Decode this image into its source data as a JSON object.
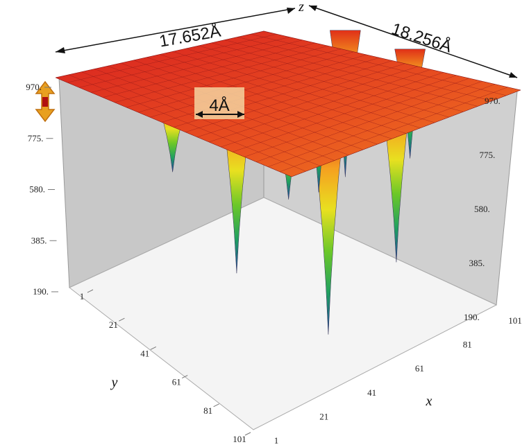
{
  "chart_data": {
    "type": "surface",
    "title": "",
    "dimensions": {
      "x_length": "17.652Å",
      "y_length": "18.256Å",
      "spacing": "4Å"
    },
    "axes": {
      "x": {
        "label": "x",
        "ticks": [
          "1",
          "21",
          "41",
          "61",
          "81",
          "101"
        ],
        "range": [
          1,
          101
        ]
      },
      "y": {
        "label": "y",
        "ticks": [
          "1",
          "21",
          "41",
          "61",
          "81",
          "101"
        ],
        "range": [
          1,
          101
        ]
      },
      "z": {
        "label": "z",
        "ticks": [
          "190.",
          "385.",
          "580.",
          "775.",
          "970."
        ],
        "range": [
          190,
          970
        ]
      }
    },
    "surface": {
      "plateau_z": 970,
      "wells": [
        {
          "x": 20,
          "y": 70,
          "min_z": 700
        },
        {
          "x": 35,
          "y": 55,
          "min_z": 330
        },
        {
          "x": 45,
          "y": 40,
          "min_z": 640
        },
        {
          "x": 50,
          "y": 25,
          "min_z": 190
        },
        {
          "x": 65,
          "y": 50,
          "min_z": 520
        },
        {
          "x": 78,
          "y": 25,
          "min_z": 330
        },
        {
          "x": 85,
          "y": 62,
          "min_z": 420
        },
        {
          "x": 95,
          "y": 40,
          "min_z": 560
        }
      ]
    },
    "colormap": [
      "#c81414",
      "#f05020",
      "#f5a020",
      "#e8e020",
      "#6cc828",
      "#20a060",
      "#2040a0"
    ],
    "grid": true,
    "legend": "none"
  },
  "scale_icon": "double-arrow-icon"
}
